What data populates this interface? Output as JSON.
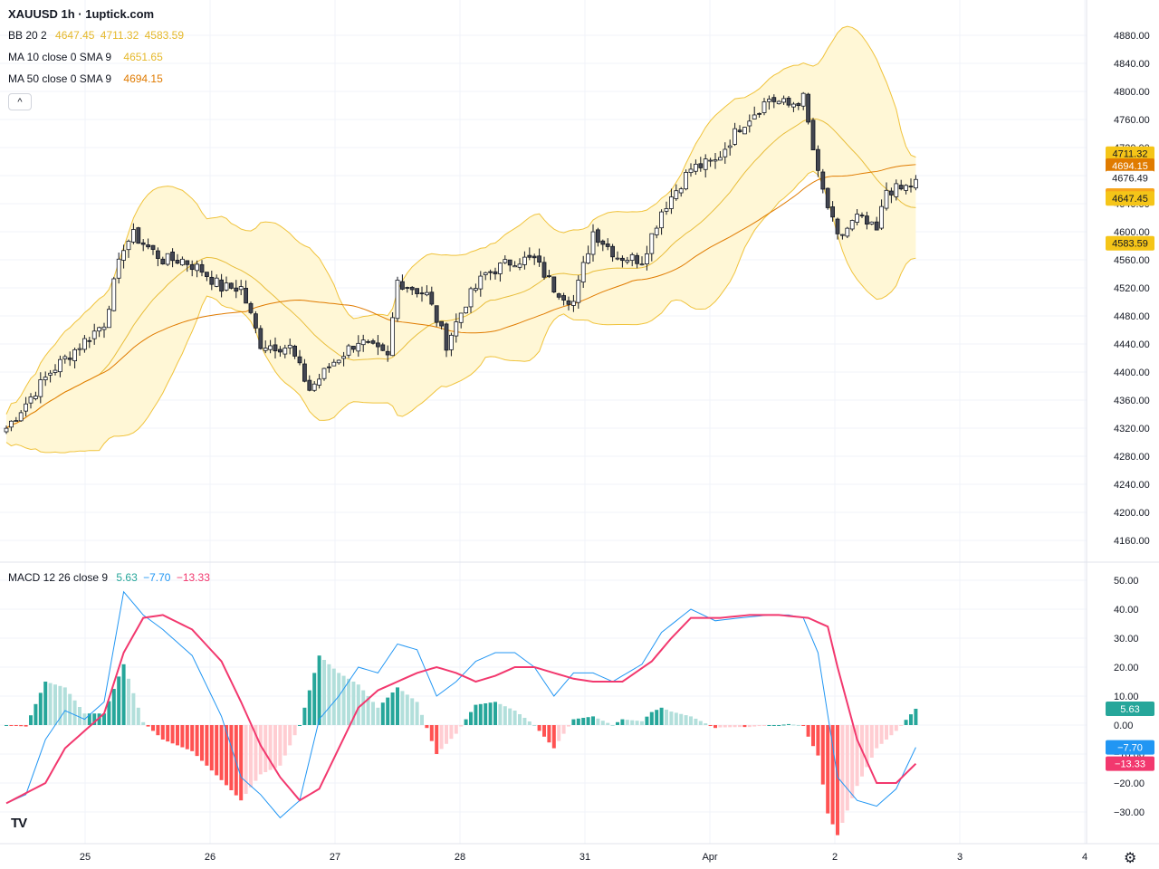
{
  "title": "XAUUSD 1h · 1uptick.com",
  "legend": {
    "bb": {
      "name": "BB 20 2",
      "v1": "4647.45",
      "v2": "4711.32",
      "v3": "4583.59",
      "color": "#e5b82a"
    },
    "ma10": {
      "name": "MA 10 close 0 SMA 9",
      "value": "4651.65",
      "color": "#e5b82a"
    },
    "ma50": {
      "name": "MA 50 close 0 SMA 9",
      "value": "4694.15",
      "color": "#e07b00"
    },
    "macd": {
      "name": "MACD 12 26 close 9",
      "hist": "5.63",
      "macd": "−7.70",
      "signal": "−13.33"
    }
  },
  "colors": {
    "up_candle": "#ffffff",
    "down_candle": "#434651",
    "wick": "#131722",
    "bb_fill": "#fff7d6",
    "bb_line": "#f0c33c",
    "ma10": "#e8bd3a",
    "ma50": "#e07b00",
    "macd_line": "#2196f3",
    "signal_line": "#f2386e",
    "hist_up_strong": "#26a69a",
    "hist_up_weak": "#b2dfdb",
    "hist_down_strong": "#ff5252",
    "hist_down_weak": "#ffcdd2"
  },
  "icons": {
    "collapse": "^",
    "logo": "TV",
    "settings": "⚙"
  },
  "chart_data": [
    {
      "type": "candlestick",
      "title": "XAUUSD 1h",
      "ylim": [
        4120,
        4900
      ],
      "yticks": [
        "4880.00",
        "4840.00",
        "4800.00",
        "4760.00",
        "4720.00",
        "4680.00",
        "4640.00",
        "4600.00",
        "4560.00",
        "4520.00",
        "4480.00",
        "4440.00",
        "4400.00",
        "4360.00",
        "4320.00",
        "4280.00",
        "4240.00",
        "4200.00",
        "4160.00"
      ],
      "x_labels": [
        "25",
        "26",
        "27",
        "28",
        "31",
        "Apr",
        "2",
        "3",
        "4"
      ],
      "anchors": [
        {
          "i": 0,
          "close": 4320
        },
        {
          "i": 9,
          "close": 4400
        },
        {
          "i": 20,
          "close": 4470
        },
        {
          "i": 24,
          "close": 4580
        },
        {
          "i": 26,
          "close": 4595
        },
        {
          "i": 32,
          "close": 4560
        },
        {
          "i": 36,
          "close": 4560
        },
        {
          "i": 40,
          "close": 4545
        },
        {
          "i": 44,
          "close": 4520
        },
        {
          "i": 48,
          "close": 4520
        },
        {
          "i": 52,
          "close": 4440
        },
        {
          "i": 58,
          "close": 4435
        },
        {
          "i": 62,
          "close": 4375
        },
        {
          "i": 67,
          "close": 4415
        },
        {
          "i": 72,
          "close": 4445
        },
        {
          "i": 78,
          "close": 4420
        },
        {
          "i": 80,
          "close": 4530
        },
        {
          "i": 86,
          "close": 4510
        },
        {
          "i": 90,
          "close": 4440
        },
        {
          "i": 94,
          "close": 4500
        },
        {
          "i": 98,
          "close": 4540
        },
        {
          "i": 104,
          "close": 4560
        },
        {
          "i": 108,
          "close": 4560
        },
        {
          "i": 112,
          "close": 4520
        },
        {
          "i": 116,
          "close": 4500
        },
        {
          "i": 120,
          "close": 4600
        },
        {
          "i": 125,
          "close": 4565
        },
        {
          "i": 130,
          "close": 4560
        },
        {
          "i": 134,
          "close": 4630
        },
        {
          "i": 140,
          "close": 4690
        },
        {
          "i": 145,
          "close": 4700
        },
        {
          "i": 150,
          "close": 4750
        },
        {
          "i": 156,
          "close": 4790
        },
        {
          "i": 160,
          "close": 4780
        },
        {
          "i": 163,
          "close": 4790
        },
        {
          "i": 166,
          "close": 4680
        },
        {
          "i": 170,
          "close": 4590
        },
        {
          "i": 174,
          "close": 4620
        },
        {
          "i": 178,
          "close": 4600
        },
        {
          "i": 180,
          "close": 4660
        },
        {
          "i": 183,
          "close": 4660
        },
        {
          "i": 186,
          "close": 4670
        }
      ],
      "price_labels": [
        {
          "value": "4711.32",
          "y": 4711.32,
          "bg": "#f5c518",
          "fg": "#131722"
        },
        {
          "value": "4694.15",
          "y": 4694.15,
          "bg": "#e07b00",
          "fg": "#ffffff"
        },
        {
          "value": "4676.49",
          "y": 4676.49,
          "bg": "#ffffff",
          "fg": "#131722"
        },
        {
          "value": "4651.65",
          "y": 4651.65,
          "bg": "#f7a41b",
          "fg": "#131722"
        },
        {
          "value": "4647.45",
          "y": 4647.45,
          "bg": "#f5c518",
          "fg": "#131722"
        },
        {
          "value": "4583.59",
          "y": 4583.59,
          "bg": "#f5c518",
          "fg": "#131722"
        }
      ]
    },
    {
      "type": "bar",
      "title": "MACD 12 26 close 9",
      "ylim": [
        -40,
        55
      ],
      "yticks": [
        "50.00",
        "40.00",
        "30.00",
        "20.00",
        "10.00",
        "0.00",
        "−10.00",
        "−20.00",
        "−30.00"
      ],
      "macd_anchors": [
        {
          "i": 0,
          "v": -27
        },
        {
          "i": 4,
          "v": -24
        },
        {
          "i": 8,
          "v": -5
        },
        {
          "i": 12,
          "v": 5
        },
        {
          "i": 16,
          "v": 2
        },
        {
          "i": 20,
          "v": 8
        },
        {
          "i": 24,
          "v": 46
        },
        {
          "i": 28,
          "v": 38
        },
        {
          "i": 32,
          "v": 33
        },
        {
          "i": 38,
          "v": 24
        },
        {
          "i": 44,
          "v": 3
        },
        {
          "i": 48,
          "v": -18
        },
        {
          "i": 52,
          "v": -24
        },
        {
          "i": 56,
          "v": -32
        },
        {
          "i": 60,
          "v": -26
        },
        {
          "i": 64,
          "v": 2
        },
        {
          "i": 68,
          "v": 10
        },
        {
          "i": 72,
          "v": 20
        },
        {
          "i": 76,
          "v": 18
        },
        {
          "i": 80,
          "v": 28
        },
        {
          "i": 84,
          "v": 26
        },
        {
          "i": 88,
          "v": 10
        },
        {
          "i": 92,
          "v": 15
        },
        {
          "i": 96,
          "v": 22
        },
        {
          "i": 100,
          "v": 25
        },
        {
          "i": 104,
          "v": 25
        },
        {
          "i": 108,
          "v": 20
        },
        {
          "i": 112,
          "v": 10
        },
        {
          "i": 116,
          "v": 18
        },
        {
          "i": 120,
          "v": 18
        },
        {
          "i": 124,
          "v": 15
        },
        {
          "i": 130,
          "v": 21
        },
        {
          "i": 134,
          "v": 32
        },
        {
          "i": 140,
          "v": 40
        },
        {
          "i": 145,
          "v": 36
        },
        {
          "i": 150,
          "v": 37
        },
        {
          "i": 156,
          "v": 38
        },
        {
          "i": 160,
          "v": 38
        },
        {
          "i": 163,
          "v": 37
        },
        {
          "i": 166,
          "v": 25
        },
        {
          "i": 170,
          "v": -18
        },
        {
          "i": 174,
          "v": -26
        },
        {
          "i": 178,
          "v": -28
        },
        {
          "i": 182,
          "v": -22
        },
        {
          "i": 186,
          "v": -7.7
        }
      ],
      "signal_anchors": [
        {
          "i": 0,
          "v": -27
        },
        {
          "i": 8,
          "v": -20
        },
        {
          "i": 12,
          "v": -8
        },
        {
          "i": 16,
          "v": -2
        },
        {
          "i": 20,
          "v": 4
        },
        {
          "i": 24,
          "v": 25
        },
        {
          "i": 28,
          "v": 37
        },
        {
          "i": 32,
          "v": 38
        },
        {
          "i": 38,
          "v": 33
        },
        {
          "i": 44,
          "v": 22
        },
        {
          "i": 48,
          "v": 8
        },
        {
          "i": 52,
          "v": -7
        },
        {
          "i": 56,
          "v": -18
        },
        {
          "i": 60,
          "v": -26
        },
        {
          "i": 64,
          "v": -22
        },
        {
          "i": 68,
          "v": -8
        },
        {
          "i": 72,
          "v": 6
        },
        {
          "i": 76,
          "v": 12
        },
        {
          "i": 80,
          "v": 15
        },
        {
          "i": 84,
          "v": 18
        },
        {
          "i": 88,
          "v": 20
        },
        {
          "i": 92,
          "v": 18
        },
        {
          "i": 96,
          "v": 15
        },
        {
          "i": 100,
          "v": 17
        },
        {
          "i": 104,
          "v": 20
        },
        {
          "i": 108,
          "v": 20
        },
        {
          "i": 112,
          "v": 18
        },
        {
          "i": 116,
          "v": 16
        },
        {
          "i": 120,
          "v": 15
        },
        {
          "i": 126,
          "v": 15
        },
        {
          "i": 132,
          "v": 22
        },
        {
          "i": 136,
          "v": 30
        },
        {
          "i": 140,
          "v": 37
        },
        {
          "i": 146,
          "v": 37
        },
        {
          "i": 152,
          "v": 38
        },
        {
          "i": 158,
          "v": 38
        },
        {
          "i": 164,
          "v": 37
        },
        {
          "i": 168,
          "v": 34
        },
        {
          "i": 170,
          "v": 20
        },
        {
          "i": 174,
          "v": -5
        },
        {
          "i": 178,
          "v": -20
        },
        {
          "i": 182,
          "v": -20
        },
        {
          "i": 186,
          "v": -13.33
        }
      ],
      "price_labels": [
        {
          "value": "5.63",
          "y": 5.63,
          "bg": "#26a69a",
          "fg": "#ffffff"
        },
        {
          "value": "−7.70",
          "y": -7.7,
          "bg": "#2196f3",
          "fg": "#ffffff"
        },
        {
          "value": "−13.33",
          "y": -13.33,
          "bg": "#f2386e",
          "fg": "#ffffff"
        }
      ]
    }
  ]
}
